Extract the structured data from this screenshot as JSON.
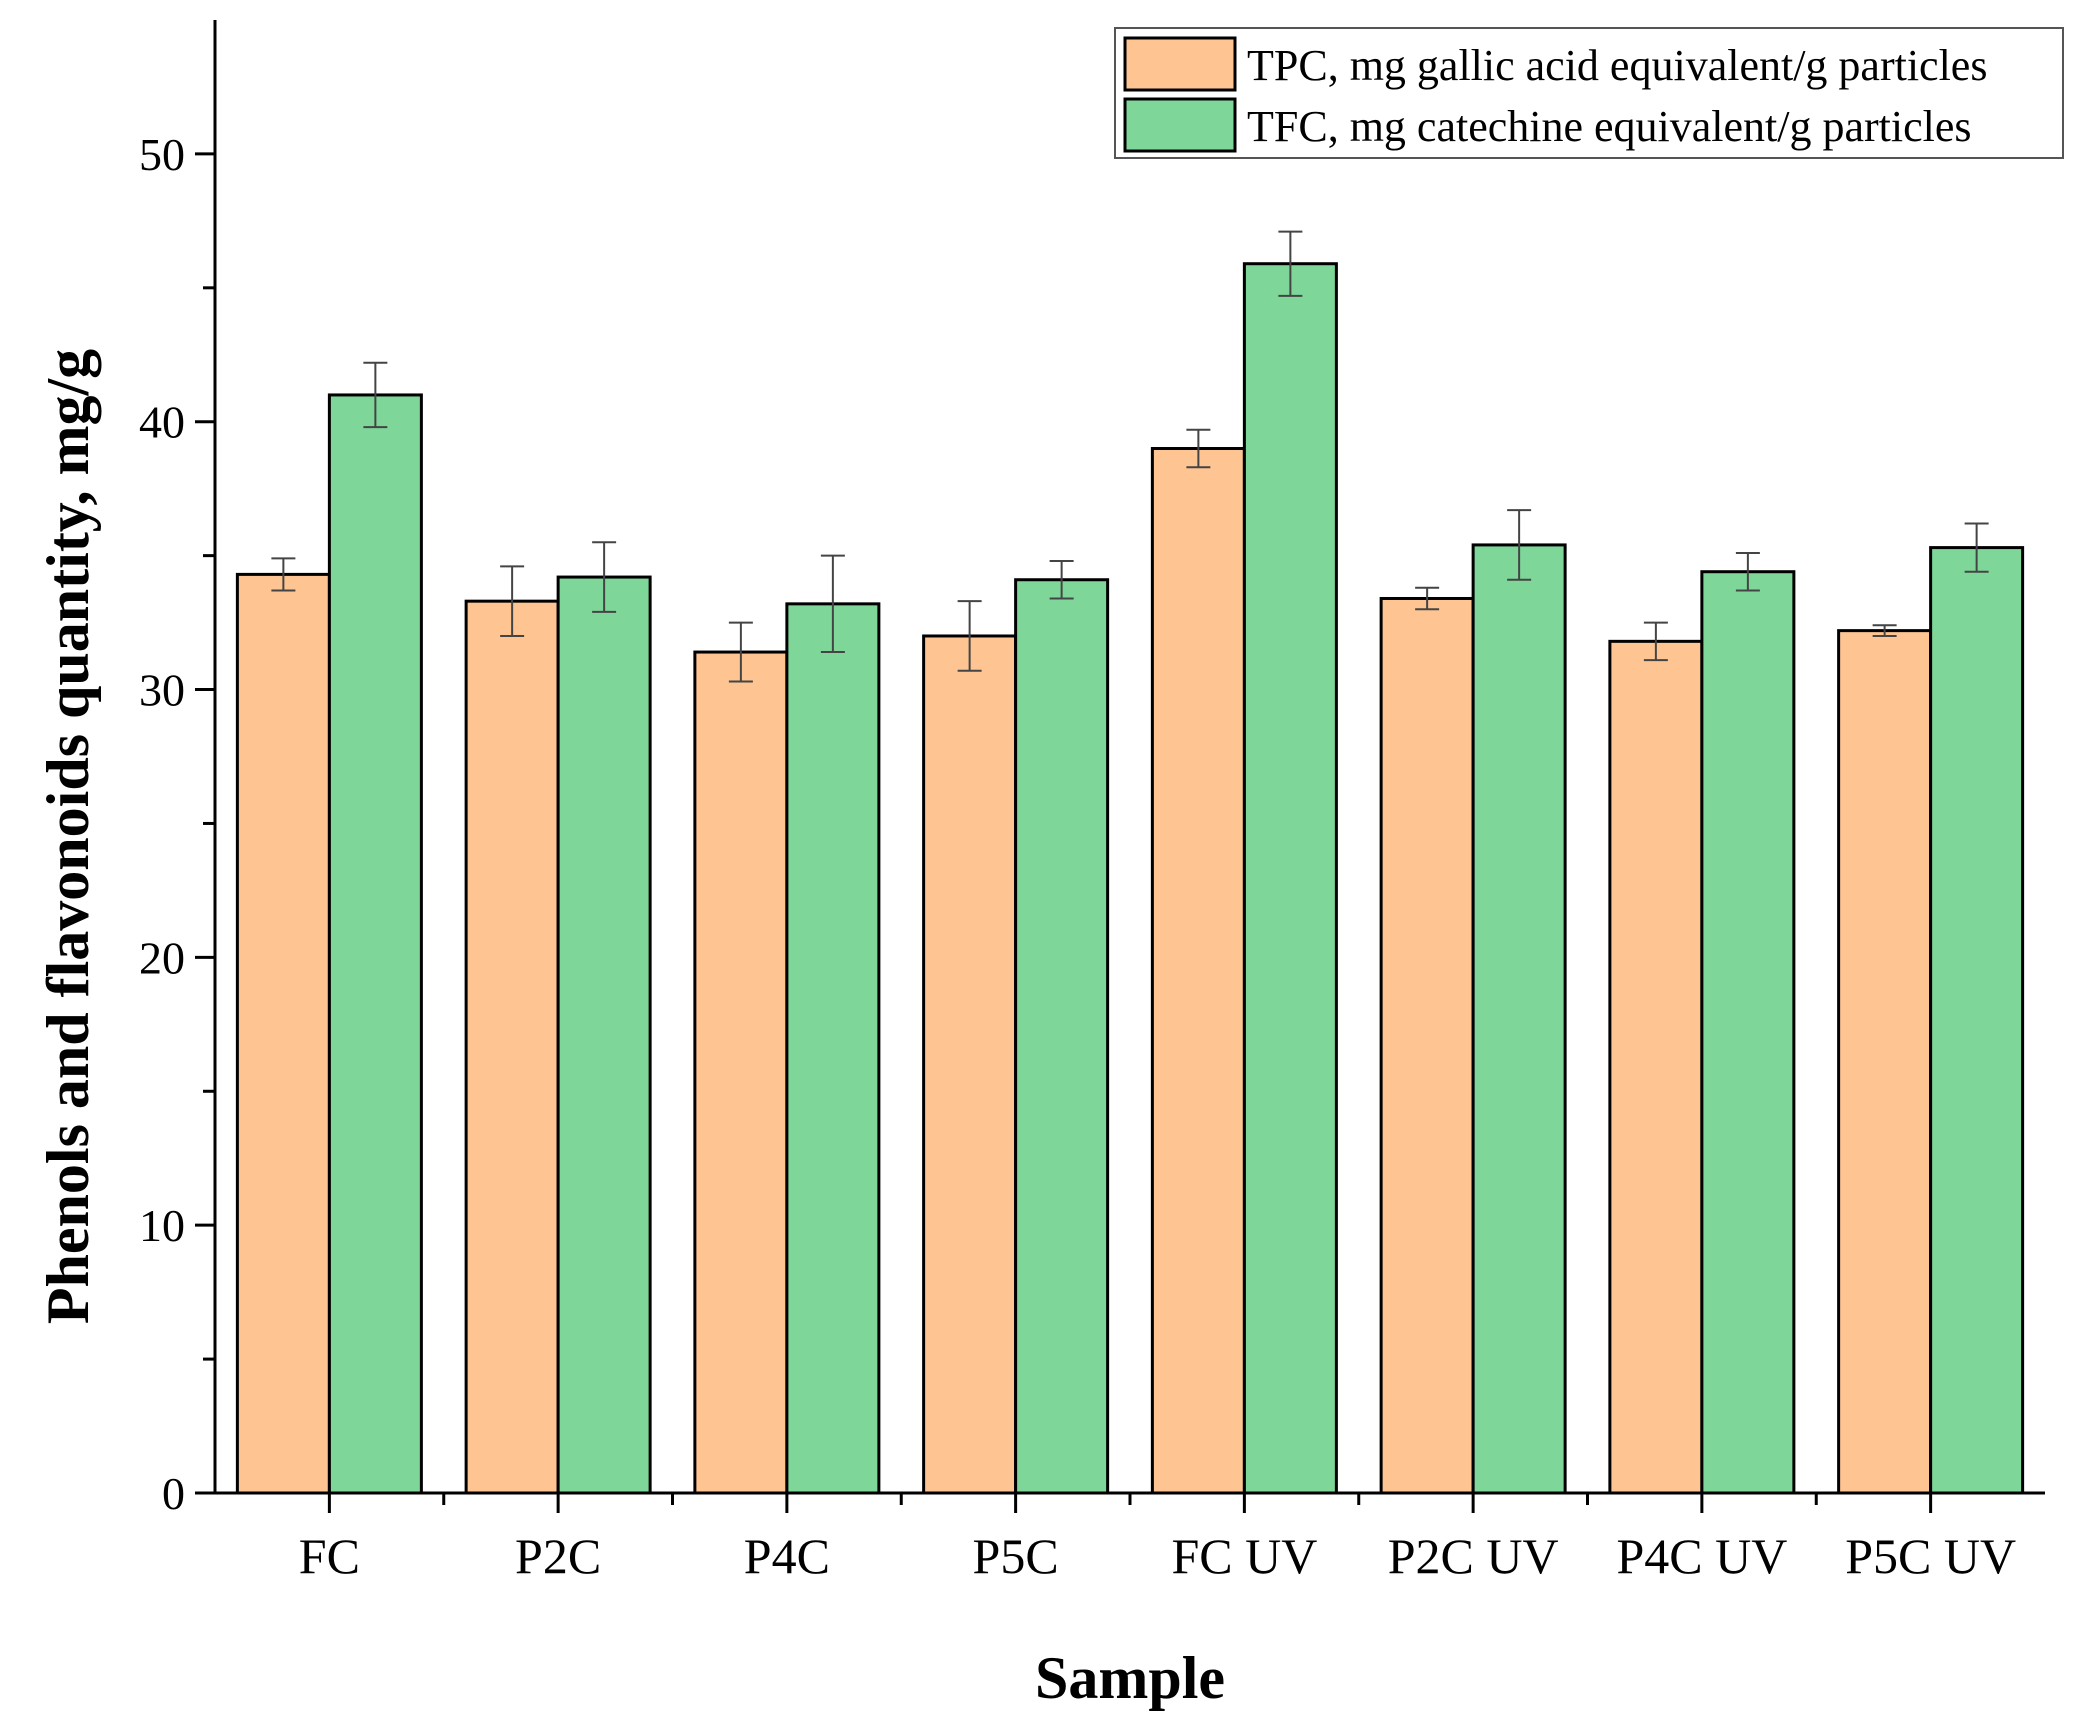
{
  "chart_data": {
    "type": "bar",
    "title": "",
    "xlabel": "Sample",
    "ylabel": "Phenols and flavonoids quantity, mg/g",
    "ylim": [
      0,
      55
    ],
    "yticks": [
      0,
      10,
      20,
      30,
      40,
      50
    ],
    "grid": false,
    "legend_position": "top-right",
    "categories": [
      "FC",
      "P2C",
      "P4C",
      "P5C",
      "FC UV",
      "P2C UV",
      "P4C UV",
      "P5C UV"
    ],
    "series": [
      {
        "name": "TPC, mg gallic acid equivalent/g particles",
        "color": "#FEC593",
        "values": [
          34.3,
          33.3,
          31.4,
          32.0,
          39.0,
          33.4,
          31.8,
          32.2
        ],
        "errors": [
          0.6,
          1.3,
          1.1,
          1.3,
          0.7,
          0.4,
          0.7,
          0.2
        ]
      },
      {
        "name": "TFC, mg catechine equivalent/g particles",
        "color": "#7ED798",
        "values": [
          41.0,
          34.2,
          33.2,
          34.1,
          45.9,
          35.4,
          34.4,
          35.3
        ],
        "errors": [
          1.2,
          1.3,
          1.8,
          0.7,
          1.2,
          1.3,
          0.7,
          0.9
        ]
      }
    ]
  }
}
